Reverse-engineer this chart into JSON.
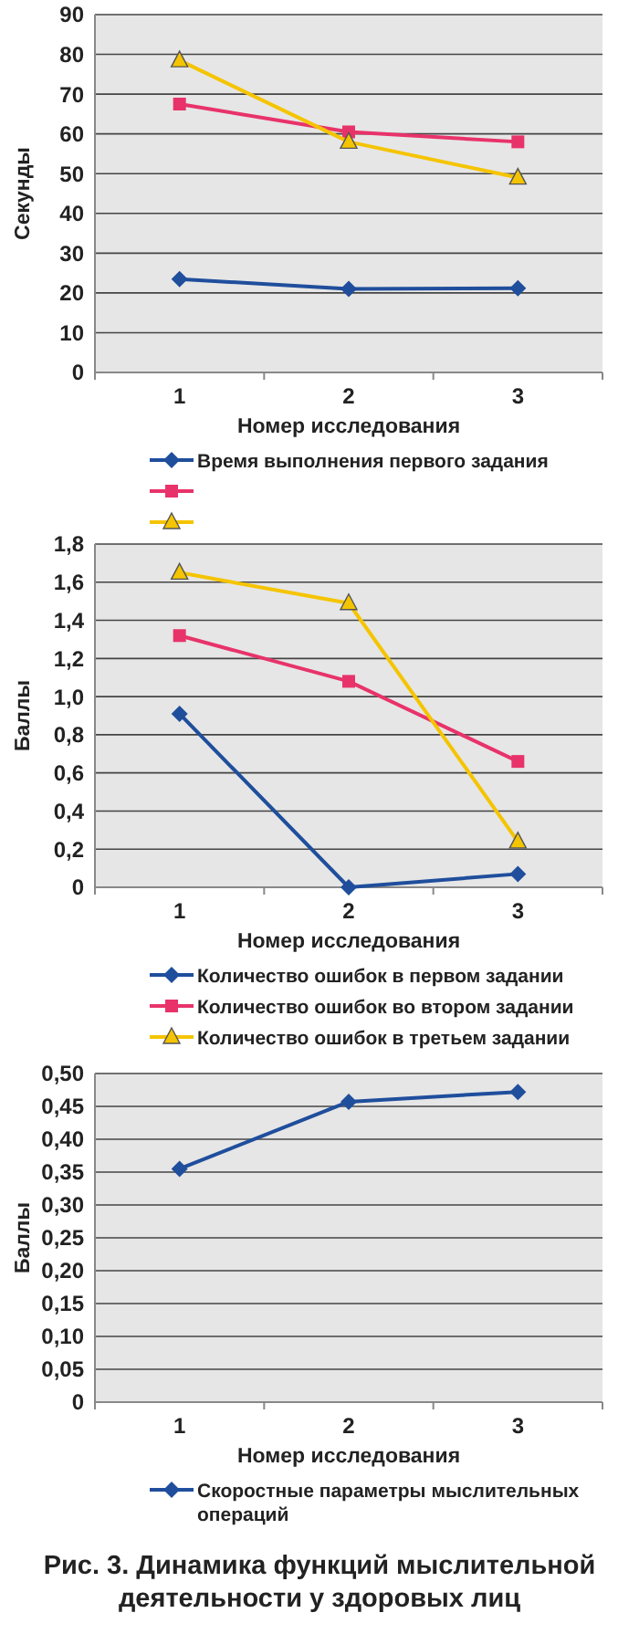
{
  "chart_data": [
    {
      "type": "line",
      "categories": [
        "1",
        "2",
        "3"
      ],
      "xlabel": "Номер исследования",
      "ylabel": "Секунды",
      "ylim": [
        0,
        90
      ],
      "yticks": [
        0,
        10,
        20,
        30,
        40,
        50,
        60,
        70,
        80,
        90
      ],
      "grid": "y",
      "legend": "bottom",
      "series": [
        {
          "name": "Время выполнения первого задания",
          "color": "#1f4e9c",
          "marker": "diamond",
          "values": [
            23.5,
            21,
            21.2
          ]
        },
        {
          "color": "#e8336a",
          "marker": "square",
          "values": [
            67.5,
            60.5,
            58
          ]
        },
        {
          "color": "#f5c400",
          "marker": "triangle",
          "values": [
            78.5,
            58,
            49
          ]
        }
      ]
    },
    {
      "type": "line",
      "categories": [
        "1",
        "2",
        "3"
      ],
      "xlabel": "Номер исследования",
      "ylabel": "Баллы",
      "ylim": [
        0,
        1.8
      ],
      "yticks": [
        0,
        {
          "value": 0.2,
          "label": "0,2"
        },
        {
          "value": 0.4,
          "label": "0,4"
        },
        {
          "value": 0.6,
          "label": "0,6"
        },
        {
          "value": 0.8,
          "label": "0,8"
        },
        {
          "value": 1.0,
          "label": "1,0"
        },
        {
          "value": 1.2,
          "label": "1,2"
        },
        {
          "value": 1.4,
          "label": "1,4"
        },
        {
          "value": 1.6,
          "label": "1,6"
        },
        {
          "value": 1.8,
          "label": "1,8"
        }
      ],
      "grid": "y",
      "legend": "bottom",
      "series": [
        {
          "name": "Количество ошибок в первом задании",
          "color": "#1f4e9c",
          "marker": "diamond",
          "values": [
            0.91,
            0,
            0.07
          ]
        },
        {
          "name": "Количество ошибок во втором задании",
          "color": "#e8336a",
          "marker": "square",
          "values": [
            1.32,
            1.08,
            0.66
          ]
        },
        {
          "name": "Количество ошибок в третьем задании",
          "color": "#f5c400",
          "marker": "triangle",
          "values": [
            1.65,
            1.49,
            0.24
          ]
        }
      ]
    },
    {
      "type": "line",
      "categories": [
        "1",
        "2",
        "3"
      ],
      "xlabel": "Номер исследования",
      "ylabel": "Баллы",
      "ylim": [
        0,
        0.5
      ],
      "yticks": [
        0,
        {
          "value": 0.05,
          "label": "0,05"
        },
        {
          "value": 0.1,
          "label": "0,10"
        },
        {
          "value": 0.15,
          "label": "0,15"
        },
        {
          "value": 0.2,
          "label": "0,20"
        },
        {
          "value": 0.25,
          "label": "0,25"
        },
        {
          "value": 0.3,
          "label": "0,30"
        },
        {
          "value": 0.35,
          "label": "0,35"
        },
        {
          "value": 0.4,
          "label": "0,40"
        },
        {
          "value": 0.45,
          "label": "0,45"
        },
        {
          "value": 0.5,
          "label": "0,50"
        }
      ],
      "grid": "y",
      "legend": "bottom",
      "annotations": [
        "Рис. 3. Динамика функций мыслительной деятельности у здоровых лиц"
      ],
      "series": [
        {
          "name": "Скоростные параметры мыслительных операций",
          "color": "#1f4e9c",
          "marker": "diamond",
          "values": [
            0.355,
            0.457,
            0.472
          ]
        }
      ]
    }
  ]
}
